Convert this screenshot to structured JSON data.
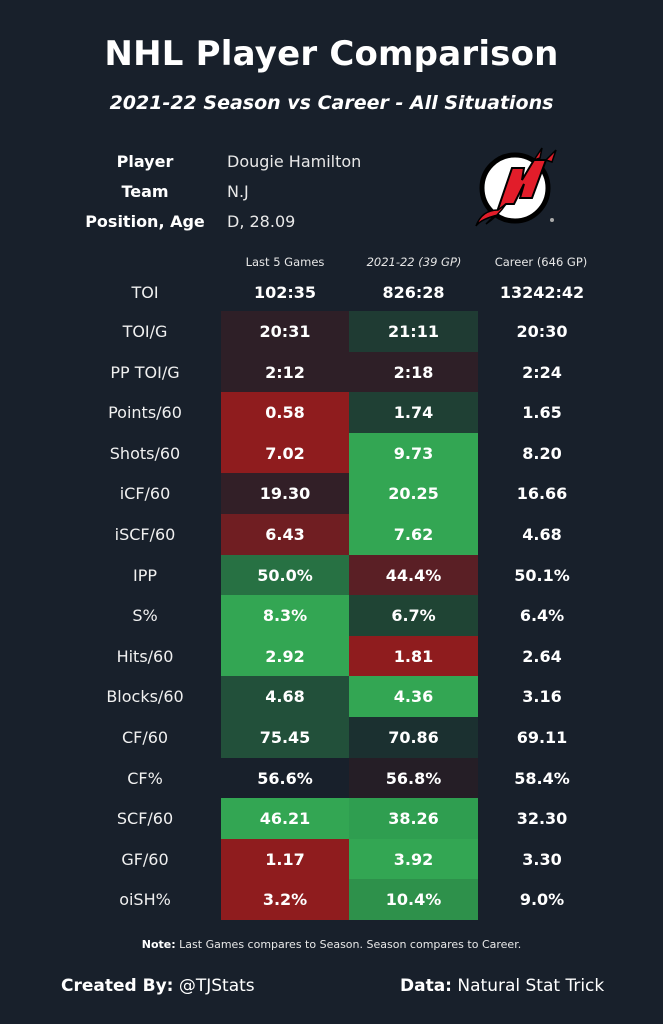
{
  "header": {
    "title": "NHL Player Comparison",
    "subtitle": "2021-22 Season vs Career - All Situations"
  },
  "player_info": [
    {
      "key": "Player",
      "value": "Dougie Hamilton"
    },
    {
      "key": "Team",
      "value": "N.J"
    },
    {
      "key": "Position, Age",
      "value": "D, 28.09"
    }
  ],
  "logo": {
    "icon": "new-jersey-devils-logo",
    "primary_color": "#e21d2a",
    "secondary_color": "#ffffff",
    "outline_color": "#000000"
  },
  "columns": [
    "Last 5 Games",
    "2021-22 (39 GP)",
    "Career (646 GP)"
  ],
  "colors": {
    "background": "#18202b",
    "strong_green": "#33a653",
    "medium_green": "#2a6b42",
    "dark_green": "#1f4434",
    "faint_green": "#1d2f30",
    "strong_red": "#8f1c1e",
    "medium_red": "#701e22",
    "dark_red": "#5a1f25",
    "faint_red": "#2e1f27"
  },
  "rows": [
    {
      "label": "TOI",
      "values": [
        "102:35",
        "826:28",
        "13242:42"
      ],
      "colors": [
        "none",
        "none"
      ]
    },
    {
      "label": "TOI/G",
      "values": [
        "20:31",
        "21:11",
        "20:30"
      ],
      "colors": [
        "#2e1f27",
        "#1f3b33"
      ]
    },
    {
      "label": "PP TOI/G",
      "values": [
        "2:12",
        "2:18",
        "2:24"
      ],
      "colors": [
        "#2e1f27",
        "#2e1f27"
      ]
    },
    {
      "label": "Points/60",
      "values": [
        "0.58",
        "1.74",
        "1.65"
      ],
      "colors": [
        "#8f1c1e",
        "#1f4034"
      ]
    },
    {
      "label": "Shots/60",
      "values": [
        "7.02",
        "9.73",
        "8.20"
      ],
      "colors": [
        "#8f1c1e",
        "#33a653"
      ]
    },
    {
      "label": "iCF/60",
      "values": [
        "19.30",
        "20.25",
        "16.66"
      ],
      "colors": [
        "#321f27",
        "#33a653"
      ]
    },
    {
      "label": "iSCF/60",
      "values": [
        "6.43",
        "7.62",
        "4.68"
      ],
      "colors": [
        "#701e22",
        "#33a653"
      ]
    },
    {
      "label": "IPP",
      "values": [
        "50.0%",
        "44.4%",
        "50.1%"
      ],
      "colors": [
        "#277143",
        "#5a1f25"
      ]
    },
    {
      "label": "S%",
      "values": [
        "8.3%",
        "6.7%",
        "6.4%"
      ],
      "colors": [
        "#33a653",
        "#1f4434"
      ]
    },
    {
      "label": "Hits/60",
      "values": [
        "2.92",
        "1.81",
        "2.64"
      ],
      "colors": [
        "#33a653",
        "#8f1c1e"
      ]
    },
    {
      "label": "Blocks/60",
      "values": [
        "4.68",
        "4.36",
        "3.16"
      ],
      "colors": [
        "#22503a",
        "#33a653"
      ]
    },
    {
      "label": "CF/60",
      "values": [
        "75.45",
        "70.86",
        "69.11"
      ],
      "colors": [
        "#22503a",
        "#1b3030"
      ]
    },
    {
      "label": "CF%",
      "values": [
        "56.6%",
        "56.8%",
        "58.4%"
      ],
      "colors": [
        "#18202b",
        "#251e26"
      ]
    },
    {
      "label": "SCF/60",
      "values": [
        "46.21",
        "38.26",
        "32.30"
      ],
      "colors": [
        "#33a653",
        "#2f9e50"
      ]
    },
    {
      "label": "GF/60",
      "values": [
        "1.17",
        "3.92",
        "3.30"
      ],
      "colors": [
        "#8f1c1e",
        "#33a653"
      ]
    },
    {
      "label": "oiSH%",
      "values": [
        "3.2%",
        "10.4%",
        "9.0%"
      ],
      "colors": [
        "#8f1c1e",
        "#2e914b"
      ]
    }
  ],
  "note": {
    "bold": "Note:",
    "text": " Last Games compares to Season. Season compares to Career."
  },
  "footer": {
    "created_label": "Created By:",
    "created_value": " @TJStats",
    "data_label": "Data:",
    "data_value": " Natural Stat Trick"
  }
}
